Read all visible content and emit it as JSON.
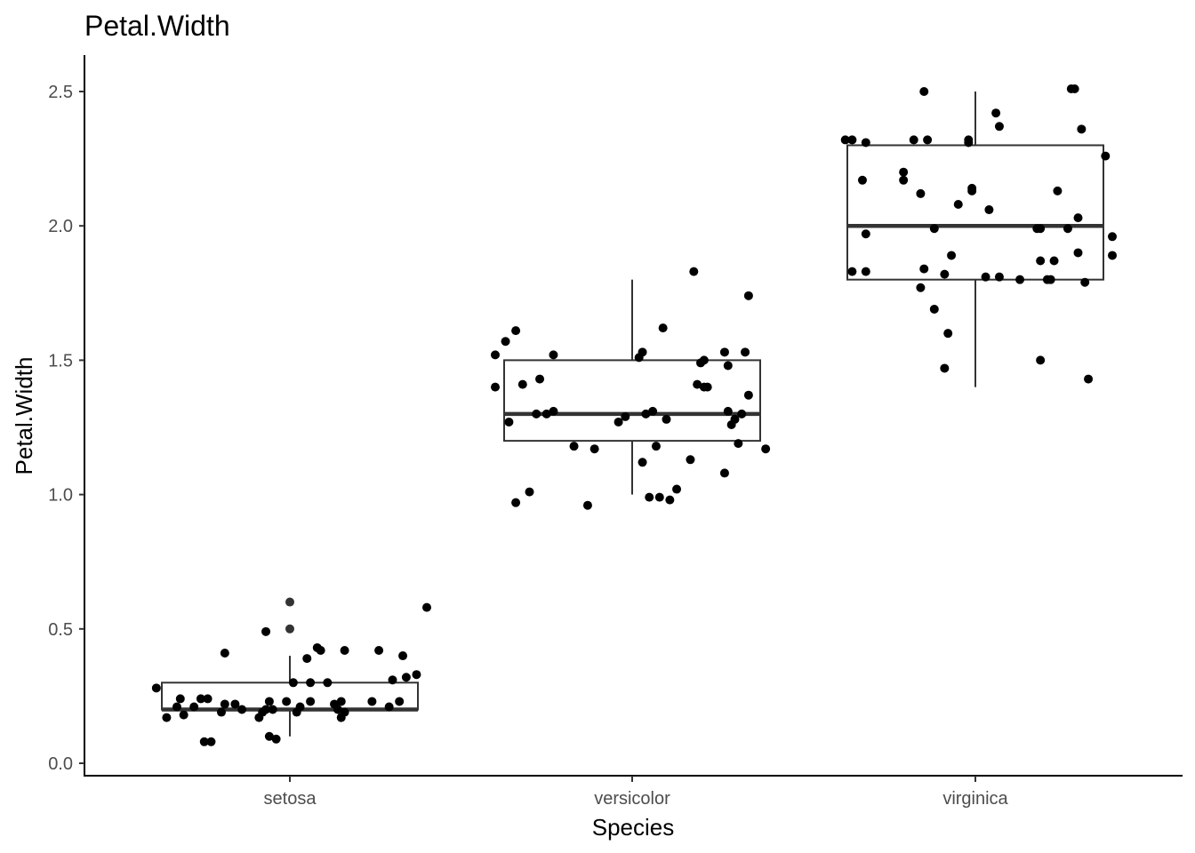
{
  "chart_data": {
    "type": "boxplot",
    "title": "Petal.Width",
    "xlabel": "Species",
    "ylabel": "Petal.Width",
    "categories": [
      "setosa",
      "versicolor",
      "virginica"
    ],
    "ylim": [
      -0.05,
      2.63
    ],
    "yticks": [
      0.0,
      0.5,
      1.0,
      1.5,
      2.0,
      2.5
    ],
    "ytick_labels": [
      "0.0",
      "0.5",
      "1.0",
      "1.5",
      "2.0",
      "2.5"
    ],
    "grid": false,
    "legend": "none",
    "boxes": [
      {
        "category": "setosa",
        "min": 0.1,
        "q1": 0.2,
        "median": 0.2,
        "q3": 0.3,
        "max": 0.4,
        "outliers": [
          0.5,
          0.6
        ]
      },
      {
        "category": "versicolor",
        "min": 1.0,
        "q1": 1.2,
        "median": 1.3,
        "q3": 1.5,
        "max": 1.8,
        "outliers": []
      },
      {
        "category": "virginica",
        "min": 1.4,
        "q1": 1.8,
        "median": 2.0,
        "q3": 2.3,
        "max": 2.5,
        "outliers": []
      }
    ],
    "points": [
      {
        "category": "setosa",
        "jitter": -0.39,
        "y": 0.28
      },
      {
        "category": "setosa",
        "jitter": -0.36,
        "y": 0.17
      },
      {
        "category": "setosa",
        "jitter": -0.33,
        "y": 0.21
      },
      {
        "category": "setosa",
        "jitter": -0.32,
        "y": 0.24
      },
      {
        "category": "setosa",
        "jitter": -0.31,
        "y": 0.18
      },
      {
        "category": "setosa",
        "jitter": -0.28,
        "y": 0.21
      },
      {
        "category": "setosa",
        "jitter": -0.26,
        "y": 0.24
      },
      {
        "category": "setosa",
        "jitter": -0.25,
        "y": 0.08
      },
      {
        "category": "setosa",
        "jitter": -0.24,
        "y": 0.24
      },
      {
        "category": "setosa",
        "jitter": -0.23,
        "y": 0.08
      },
      {
        "category": "setosa",
        "jitter": -0.2,
        "y": 0.19
      },
      {
        "category": "setosa",
        "jitter": -0.19,
        "y": 0.22
      },
      {
        "category": "setosa",
        "jitter": -0.19,
        "y": 0.41
      },
      {
        "category": "setosa",
        "jitter": -0.16,
        "y": 0.22
      },
      {
        "category": "setosa",
        "jitter": -0.14,
        "y": 0.2
      },
      {
        "category": "setosa",
        "jitter": -0.09,
        "y": 0.17
      },
      {
        "category": "setosa",
        "jitter": -0.08,
        "y": 0.19
      },
      {
        "category": "setosa",
        "jitter": -0.07,
        "y": 0.49
      },
      {
        "category": "setosa",
        "jitter": -0.07,
        "y": 0.2
      },
      {
        "category": "setosa",
        "jitter": -0.06,
        "y": 0.23
      },
      {
        "category": "setosa",
        "jitter": -0.06,
        "y": 0.1
      },
      {
        "category": "setosa",
        "jitter": -0.05,
        "y": 0.2
      },
      {
        "category": "setosa",
        "jitter": -0.04,
        "y": 0.09
      },
      {
        "category": "setosa",
        "jitter": -0.01,
        "y": 0.23
      },
      {
        "category": "setosa",
        "jitter": 0.01,
        "y": 0.3
      },
      {
        "category": "setosa",
        "jitter": 0.02,
        "y": 0.19
      },
      {
        "category": "setosa",
        "jitter": 0.03,
        "y": 0.21
      },
      {
        "category": "setosa",
        "jitter": 0.05,
        "y": 0.39
      },
      {
        "category": "setosa",
        "jitter": 0.06,
        "y": 0.23
      },
      {
        "category": "setosa",
        "jitter": 0.06,
        "y": 0.3
      },
      {
        "category": "setosa",
        "jitter": 0.08,
        "y": 0.43
      },
      {
        "category": "setosa",
        "jitter": 0.09,
        "y": 0.42
      },
      {
        "category": "setosa",
        "jitter": 0.11,
        "y": 0.3
      },
      {
        "category": "setosa",
        "jitter": 0.13,
        "y": 0.22
      },
      {
        "category": "setosa",
        "jitter": 0.14,
        "y": 0.2
      },
      {
        "category": "setosa",
        "jitter": 0.15,
        "y": 0.23
      },
      {
        "category": "setosa",
        "jitter": 0.15,
        "y": 0.17
      },
      {
        "category": "setosa",
        "jitter": 0.16,
        "y": 0.19
      },
      {
        "category": "setosa",
        "jitter": 0.16,
        "y": 0.42
      },
      {
        "category": "setosa",
        "jitter": 0.24,
        "y": 0.23
      },
      {
        "category": "setosa",
        "jitter": 0.26,
        "y": 0.42
      },
      {
        "category": "setosa",
        "jitter": 0.29,
        "y": 0.21
      },
      {
        "category": "setosa",
        "jitter": 0.3,
        "y": 0.31
      },
      {
        "category": "setosa",
        "jitter": 0.32,
        "y": 0.23
      },
      {
        "category": "setosa",
        "jitter": 0.33,
        "y": 0.4
      },
      {
        "category": "setosa",
        "jitter": 0.34,
        "y": 0.32
      },
      {
        "category": "setosa",
        "jitter": 0.37,
        "y": 0.33
      },
      {
        "category": "setosa",
        "jitter": 0.4,
        "y": 0.58
      },
      {
        "category": "versicolor",
        "jitter": -0.4,
        "y": 1.52
      },
      {
        "category": "versicolor",
        "jitter": -0.4,
        "y": 1.4
      },
      {
        "category": "versicolor",
        "jitter": -0.37,
        "y": 1.57
      },
      {
        "category": "versicolor",
        "jitter": -0.36,
        "y": 1.27
      },
      {
        "category": "versicolor",
        "jitter": -0.34,
        "y": 0.97
      },
      {
        "category": "versicolor",
        "jitter": -0.34,
        "y": 1.61
      },
      {
        "category": "versicolor",
        "jitter": -0.32,
        "y": 1.41
      },
      {
        "category": "versicolor",
        "jitter": -0.3,
        "y": 1.01
      },
      {
        "category": "versicolor",
        "jitter": -0.28,
        "y": 1.3
      },
      {
        "category": "versicolor",
        "jitter": -0.27,
        "y": 1.43
      },
      {
        "category": "versicolor",
        "jitter": -0.25,
        "y": 1.3
      },
      {
        "category": "versicolor",
        "jitter": -0.23,
        "y": 1.31
      },
      {
        "category": "versicolor",
        "jitter": -0.23,
        "y": 1.52
      },
      {
        "category": "versicolor",
        "jitter": -0.17,
        "y": 1.18
      },
      {
        "category": "versicolor",
        "jitter": -0.13,
        "y": 0.96
      },
      {
        "category": "versicolor",
        "jitter": -0.11,
        "y": 1.17
      },
      {
        "category": "versicolor",
        "jitter": -0.04,
        "y": 1.27
      },
      {
        "category": "versicolor",
        "jitter": -0.02,
        "y": 1.29
      },
      {
        "category": "versicolor",
        "jitter": 0.02,
        "y": 1.51
      },
      {
        "category": "versicolor",
        "jitter": 0.03,
        "y": 1.12
      },
      {
        "category": "versicolor",
        "jitter": 0.03,
        "y": 1.53
      },
      {
        "category": "versicolor",
        "jitter": 0.04,
        "y": 1.3
      },
      {
        "category": "versicolor",
        "jitter": 0.05,
        "y": 0.99
      },
      {
        "category": "versicolor",
        "jitter": 0.06,
        "y": 1.31
      },
      {
        "category": "versicolor",
        "jitter": 0.07,
        "y": 1.18
      },
      {
        "category": "versicolor",
        "jitter": 0.08,
        "y": 0.99
      },
      {
        "category": "versicolor",
        "jitter": 0.09,
        "y": 1.62
      },
      {
        "category": "versicolor",
        "jitter": 0.1,
        "y": 1.28
      },
      {
        "category": "versicolor",
        "jitter": 0.11,
        "y": 0.98
      },
      {
        "category": "versicolor",
        "jitter": 0.13,
        "y": 1.02
      },
      {
        "category": "versicolor",
        "jitter": 0.17,
        "y": 1.13
      },
      {
        "category": "versicolor",
        "jitter": 0.18,
        "y": 1.83
      },
      {
        "category": "versicolor",
        "jitter": 0.19,
        "y": 1.41
      },
      {
        "category": "versicolor",
        "jitter": 0.2,
        "y": 1.49
      },
      {
        "category": "versicolor",
        "jitter": 0.21,
        "y": 1.4
      },
      {
        "category": "versicolor",
        "jitter": 0.21,
        "y": 1.5
      },
      {
        "category": "versicolor",
        "jitter": 0.22,
        "y": 1.4
      },
      {
        "category": "versicolor",
        "jitter": 0.27,
        "y": 1.08
      },
      {
        "category": "versicolor",
        "jitter": 0.27,
        "y": 1.53
      },
      {
        "category": "versicolor",
        "jitter": 0.28,
        "y": 1.31
      },
      {
        "category": "versicolor",
        "jitter": 0.28,
        "y": 1.48
      },
      {
        "category": "versicolor",
        "jitter": 0.29,
        "y": 1.26
      },
      {
        "category": "versicolor",
        "jitter": 0.3,
        "y": 1.28
      },
      {
        "category": "versicolor",
        "jitter": 0.31,
        "y": 1.19
      },
      {
        "category": "versicolor",
        "jitter": 0.32,
        "y": 1.3
      },
      {
        "category": "versicolor",
        "jitter": 0.33,
        "y": 1.53
      },
      {
        "category": "versicolor",
        "jitter": 0.34,
        "y": 1.37
      },
      {
        "category": "versicolor",
        "jitter": 0.34,
        "y": 1.74
      },
      {
        "category": "versicolor",
        "jitter": 0.39,
        "y": 1.17
      },
      {
        "category": "virginica",
        "jitter": -0.38,
        "y": 2.32
      },
      {
        "category": "virginica",
        "jitter": -0.36,
        "y": 2.32
      },
      {
        "category": "virginica",
        "jitter": -0.36,
        "y": 1.83
      },
      {
        "category": "virginica",
        "jitter": -0.33,
        "y": 2.17
      },
      {
        "category": "virginica",
        "jitter": -0.32,
        "y": 1.97
      },
      {
        "category": "virginica",
        "jitter": -0.32,
        "y": 2.31
      },
      {
        "category": "virginica",
        "jitter": -0.32,
        "y": 1.83
      },
      {
        "category": "virginica",
        "jitter": -0.21,
        "y": 2.2
      },
      {
        "category": "virginica",
        "jitter": -0.21,
        "y": 2.17
      },
      {
        "category": "virginica",
        "jitter": -0.18,
        "y": 2.32
      },
      {
        "category": "virginica",
        "jitter": -0.16,
        "y": 2.12
      },
      {
        "category": "virginica",
        "jitter": -0.16,
        "y": 1.77
      },
      {
        "category": "virginica",
        "jitter": -0.15,
        "y": 2.5
      },
      {
        "category": "virginica",
        "jitter": -0.15,
        "y": 1.84
      },
      {
        "category": "virginica",
        "jitter": -0.14,
        "y": 2.32
      },
      {
        "category": "virginica",
        "jitter": -0.12,
        "y": 1.69
      },
      {
        "category": "virginica",
        "jitter": -0.12,
        "y": 1.99
      },
      {
        "category": "virginica",
        "jitter": -0.09,
        "y": 1.47
      },
      {
        "category": "virginica",
        "jitter": -0.09,
        "y": 1.82
      },
      {
        "category": "virginica",
        "jitter": -0.08,
        "y": 1.6
      },
      {
        "category": "virginica",
        "jitter": -0.07,
        "y": 1.89
      },
      {
        "category": "virginica",
        "jitter": -0.05,
        "y": 2.08
      },
      {
        "category": "virginica",
        "jitter": -0.02,
        "y": 2.32
      },
      {
        "category": "virginica",
        "jitter": -0.02,
        "y": 2.31
      },
      {
        "category": "virginica",
        "jitter": -0.01,
        "y": 2.13
      },
      {
        "category": "virginica",
        "jitter": -0.01,
        "y": 2.14
      },
      {
        "category": "virginica",
        "jitter": 0.03,
        "y": 1.81
      },
      {
        "category": "virginica",
        "jitter": 0.04,
        "y": 2.06
      },
      {
        "category": "virginica",
        "jitter": 0.06,
        "y": 2.42
      },
      {
        "category": "virginica",
        "jitter": 0.07,
        "y": 2.37
      },
      {
        "category": "virginica",
        "jitter": 0.07,
        "y": 1.81
      },
      {
        "category": "virginica",
        "jitter": 0.13,
        "y": 1.8
      },
      {
        "category": "virginica",
        "jitter": 0.18,
        "y": 1.99
      },
      {
        "category": "virginica",
        "jitter": 0.19,
        "y": 1.99
      },
      {
        "category": "virginica",
        "jitter": 0.19,
        "y": 1.5
      },
      {
        "category": "virginica",
        "jitter": 0.19,
        "y": 1.87
      },
      {
        "category": "virginica",
        "jitter": 0.21,
        "y": 1.8
      },
      {
        "category": "virginica",
        "jitter": 0.22,
        "y": 1.8
      },
      {
        "category": "virginica",
        "jitter": 0.23,
        "y": 1.87
      },
      {
        "category": "virginica",
        "jitter": 0.24,
        "y": 2.13
      },
      {
        "category": "virginica",
        "jitter": 0.27,
        "y": 1.99
      },
      {
        "category": "virginica",
        "jitter": 0.28,
        "y": 2.51
      },
      {
        "category": "virginica",
        "jitter": 0.29,
        "y": 2.51
      },
      {
        "category": "virginica",
        "jitter": 0.3,
        "y": 2.03
      },
      {
        "category": "virginica",
        "jitter": 0.3,
        "y": 1.9
      },
      {
        "category": "virginica",
        "jitter": 0.31,
        "y": 2.36
      },
      {
        "category": "virginica",
        "jitter": 0.32,
        "y": 1.79
      },
      {
        "category": "virginica",
        "jitter": 0.33,
        "y": 1.43
      },
      {
        "category": "virginica",
        "jitter": 0.38,
        "y": 2.26
      },
      {
        "category": "virginica",
        "jitter": 0.4,
        "y": 1.96
      },
      {
        "category": "virginica",
        "jitter": 0.4,
        "y": 1.89
      }
    ]
  }
}
